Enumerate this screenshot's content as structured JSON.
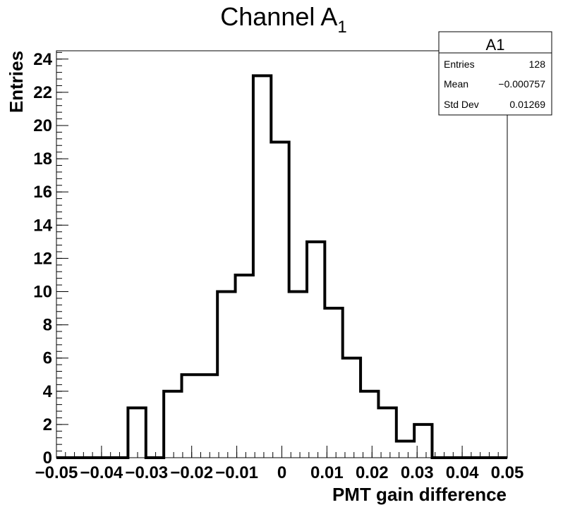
{
  "chart_data": {
    "type": "bar",
    "title": {
      "main": "Channel A",
      "subscript": "1"
    },
    "xlabel": "PMT gain difference",
    "ylabel": "Entries",
    "xlim": [
      -0.05,
      0.05
    ],
    "ylim": [
      0,
      24.5
    ],
    "grid": false,
    "bin_edges": [
      -0.05,
      -0.04603,
      -0.04206,
      -0.03809,
      -0.03413,
      -0.03016,
      -0.02619,
      -0.02222,
      -0.01825,
      -0.01429,
      -0.01032,
      -0.00635,
      -0.00238,
      0.00159,
      0.00556,
      0.00952,
      0.01349,
      0.01746,
      0.02143,
      0.0254,
      0.02937,
      0.03333,
      0.0373,
      0.04127,
      0.04524,
      0.04921,
      0.05
    ],
    "values": [
      0,
      0,
      0,
      0,
      3,
      0,
      4,
      5,
      5,
      10,
      11,
      23,
      19,
      10,
      13,
      9,
      6,
      4,
      3,
      1,
      2,
      0,
      0,
      0,
      0,
      0
    ],
    "x_ticks": [
      -0.05,
      -0.04,
      -0.03,
      -0.02,
      -0.01,
      0,
      0.01,
      0.02,
      0.03,
      0.04,
      0.05
    ],
    "x_tick_labels": [
      "−0.05",
      "−0.04",
      "−0.03",
      "−0.02",
      "−0.01",
      "0",
      "0.01",
      "0.02",
      "0.03",
      "0.04",
      "0.05"
    ],
    "y_ticks": [
      0,
      2,
      4,
      6,
      8,
      10,
      12,
      14,
      16,
      18,
      20,
      22,
      24
    ],
    "y_tick_labels": [
      "0",
      "2",
      "4",
      "6",
      "8",
      "10",
      "12",
      "14",
      "16",
      "18",
      "20",
      "22",
      "24"
    ],
    "legend": "top-right"
  },
  "stats_box": {
    "title": "A1",
    "rows": [
      {
        "label": "Entries",
        "value": "128"
      },
      {
        "label": "Mean",
        "value": "−0.000757"
      },
      {
        "label": "Std Dev",
        "value": "0.01269"
      }
    ]
  },
  "colors": {
    "line": "#000000",
    "background": "#ffffff"
  }
}
